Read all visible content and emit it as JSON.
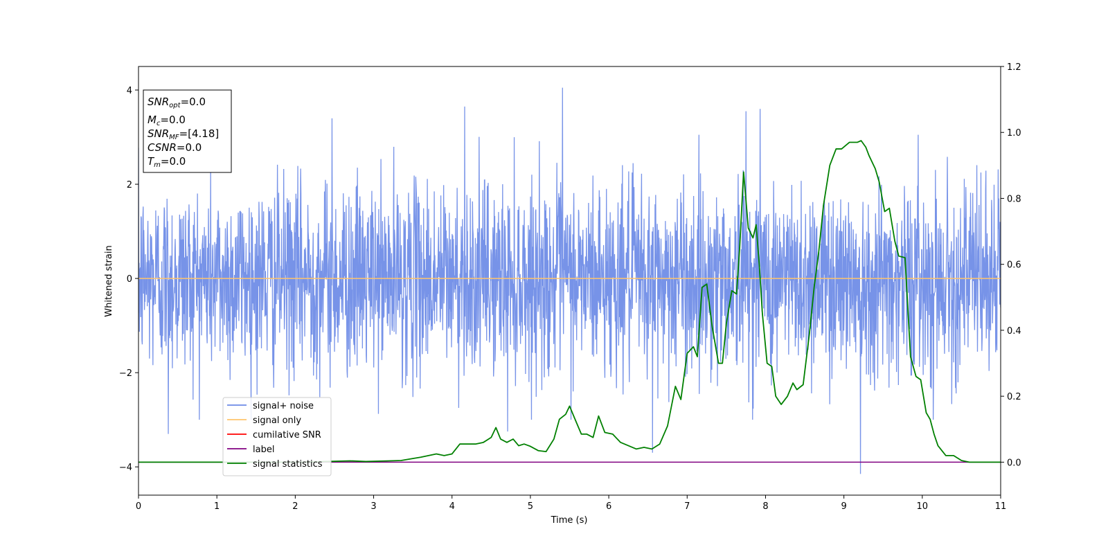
{
  "chart_data": {
    "type": "line",
    "title": "",
    "xlabel": "Time (s)",
    "ylabel": "Whitened strain",
    "ylabel_right": "",
    "xlim": [
      0,
      11
    ],
    "ylim": [
      -4.6,
      4.5
    ],
    "ylim_right": [
      -0.1,
      1.2
    ],
    "x_ticks": [
      0,
      1,
      2,
      3,
      4,
      5,
      6,
      7,
      8,
      9,
      10,
      11
    ],
    "y_ticks": [
      -4,
      -2,
      0,
      2,
      4
    ],
    "y_ticks_right": [
      0.0,
      0.2,
      0.4,
      0.6,
      0.8,
      1.0,
      1.2
    ],
    "grid": false,
    "legend_position": "lower-left",
    "colors": {
      "signal_noise": "#6b8ae6",
      "signal_only": "#ffc46b",
      "cumulative_snr": "#ff0000",
      "label": "#800080",
      "signal_statistics": "#008000"
    },
    "legend": [
      {
        "key": "signal_noise",
        "label": "signal+ noise"
      },
      {
        "key": "signal_only",
        "label": "signal only"
      },
      {
        "key": "cumulative_snr",
        "label": "cumilative SNR"
      },
      {
        "key": "label",
        "label": "label"
      },
      {
        "key": "signal_statistics",
        "label": "signal statistics"
      }
    ],
    "annotation": [
      {
        "main": "SNR",
        "sub": "opt",
        "value": "=0.0"
      },
      {
        "main": "M",
        "sub": "c",
        "value": "=0.0"
      },
      {
        "main": "SNR",
        "sub": "MF",
        "value": "=[4.18]"
      },
      {
        "main": "CSNR",
        "sub": "",
        "value": "=0.0"
      },
      {
        "main": "T",
        "sub": "m",
        "value": "=0.0"
      }
    ],
    "series": [
      {
        "key": "signal_noise",
        "axis": "left",
        "description": "whitened noisy strain, approx. zero-mean with std ~1, spikes up to ~4.1 near t=5.4 and down to ~-4.15 near t=9.2",
        "n_points": 2750,
        "spikes": [
          [
            5.41,
            4.05
          ],
          [
            9.21,
            -4.15
          ],
          [
            4.16,
            3.65
          ],
          [
            7.93,
            3.6
          ],
          [
            7.75,
            3.55
          ],
          [
            2.47,
            3.4
          ],
          [
            0.38,
            -3.3
          ],
          [
            6.56,
            -3.7
          ],
          [
            4.71,
            -3.25
          ]
        ]
      },
      {
        "key": "signal_only",
        "axis": "left",
        "x": [
          0,
          11
        ],
        "y": [
          0,
          0
        ]
      },
      {
        "key": "label",
        "axis": "right",
        "x": [
          0,
          11
        ],
        "y": [
          0,
          0
        ]
      },
      {
        "key": "signal_statistics",
        "axis": "right",
        "x": [
          0.0,
          0.3,
          0.6,
          0.9,
          1.2,
          1.5,
          1.8,
          2.1,
          2.4,
          2.7,
          2.9,
          3.2,
          3.35,
          3.5,
          3.6,
          3.7,
          3.8,
          3.9,
          4.0,
          4.05,
          4.1,
          4.2,
          4.3,
          4.4,
          4.5,
          4.56,
          4.62,
          4.7,
          4.78,
          4.85,
          4.92,
          5.0,
          5.1,
          5.2,
          5.3,
          5.37,
          5.45,
          5.5,
          5.57,
          5.65,
          5.72,
          5.8,
          5.87,
          5.95,
          6.05,
          6.15,
          6.25,
          6.35,
          6.45,
          6.55,
          6.65,
          6.75,
          6.85,
          6.92,
          7.0,
          7.08,
          7.13,
          7.19,
          7.25,
          7.32,
          7.4,
          7.45,
          7.5,
          7.57,
          7.63,
          7.67,
          7.72,
          7.78,
          7.84,
          7.88,
          7.92,
          7.96,
          8.02,
          8.08,
          8.13,
          8.2,
          8.28,
          8.35,
          8.4,
          8.48,
          8.56,
          8.62,
          8.68,
          8.74,
          8.82,
          8.9,
          8.97,
          9.07,
          9.17,
          9.22,
          9.28,
          9.32,
          9.4,
          9.45,
          9.52,
          9.58,
          9.65,
          9.7,
          9.78,
          9.85,
          9.92,
          9.98,
          10.05,
          10.1,
          10.15,
          10.2,
          10.25,
          10.3,
          10.4,
          10.5,
          10.6,
          10.7,
          10.8,
          11.0
        ],
        "y": [
          0.0,
          0.0,
          0.0,
          0.0,
          0.0,
          0.0,
          0.0,
          0.0,
          0.002,
          0.004,
          0.002,
          0.004,
          0.005,
          0.011,
          0.015,
          0.02,
          0.025,
          0.02,
          0.025,
          0.04,
          0.055,
          0.055,
          0.055,
          0.06,
          0.075,
          0.105,
          0.07,
          0.06,
          0.07,
          0.05,
          0.055,
          0.048,
          0.035,
          0.032,
          0.07,
          0.13,
          0.145,
          0.17,
          0.13,
          0.085,
          0.085,
          0.075,
          0.14,
          0.09,
          0.085,
          0.06,
          0.05,
          0.04,
          0.045,
          0.04,
          0.055,
          0.11,
          0.23,
          0.19,
          0.33,
          0.35,
          0.32,
          0.53,
          0.54,
          0.41,
          0.3,
          0.3,
          0.42,
          0.52,
          0.51,
          0.65,
          0.88,
          0.71,
          0.68,
          0.72,
          0.6,
          0.45,
          0.3,
          0.29,
          0.2,
          0.175,
          0.2,
          0.24,
          0.22,
          0.235,
          0.39,
          0.53,
          0.64,
          0.78,
          0.9,
          0.95,
          0.95,
          0.97,
          0.97,
          0.975,
          0.955,
          0.93,
          0.89,
          0.85,
          0.76,
          0.77,
          0.67,
          0.625,
          0.62,
          0.32,
          0.26,
          0.25,
          0.15,
          0.13,
          0.085,
          0.05,
          0.035,
          0.02,
          0.02,
          0.005,
          0.0,
          0.0,
          0.0,
          0.0
        ]
      }
    ]
  }
}
